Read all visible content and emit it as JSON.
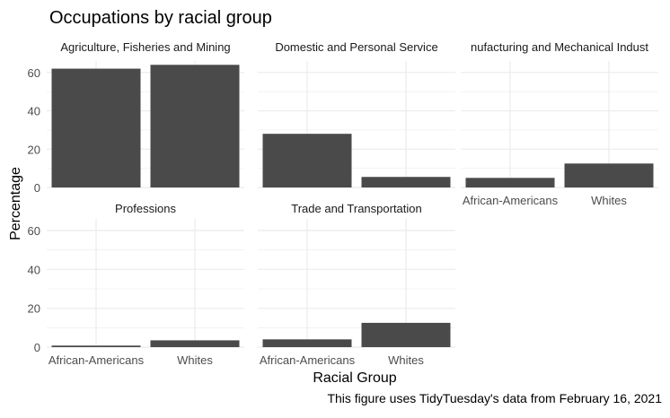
{
  "chart_data": {
    "type": "bar",
    "title": "Occupations by racial group",
    "xlabel": "Racial Group",
    "ylabel": "Percentage",
    "caption": "This figure uses TidyTuesday's data from February 16, 2021",
    "categories": [
      "African-Americans",
      "Whites"
    ],
    "ylim": [
      0,
      66
    ],
    "yticks": [
      0,
      20,
      40,
      60
    ],
    "grid": true,
    "bar_color": "#4a4a4a",
    "grid_color": "#ebebeb",
    "facets": [
      {
        "name": "Agriculture, Fisheries and Mining",
        "display_name": "Agriculture, Fisheries and Mining",
        "values": [
          62,
          64
        ]
      },
      {
        "name": "Domestic and Personal Service",
        "display_name": "Domestic and Personal Service",
        "values": [
          28,
          5.5
        ]
      },
      {
        "name": "Manufacturing and Mechanical Industries",
        "display_name": "nufacturing and Mechanical Indust",
        "values": [
          5,
          12.5
        ]
      },
      {
        "name": "Professions",
        "display_name": "Professions",
        "values": [
          0.8,
          3.5
        ]
      },
      {
        "name": "Trade and Transportation",
        "display_name": "Trade and Transportation",
        "values": [
          4,
          12.5
        ]
      }
    ]
  }
}
